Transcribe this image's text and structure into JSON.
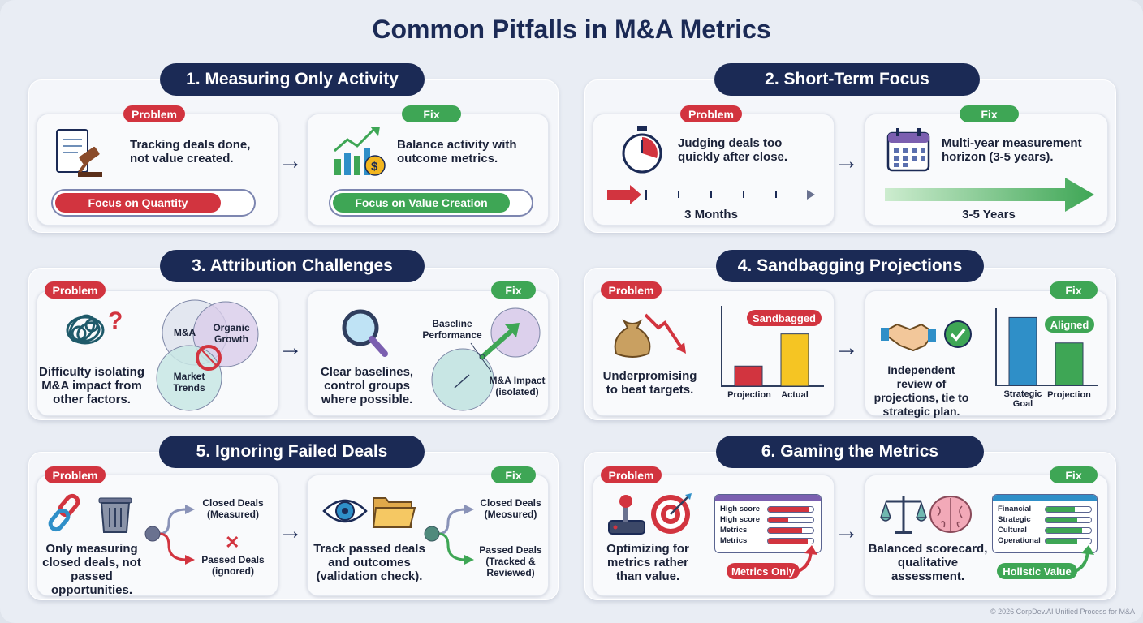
{
  "title": "Common Pitfalls in M&A Metrics",
  "labels": {
    "problem": "Problem",
    "fix": "Fix"
  },
  "colors": {
    "navy": "#1b2a55",
    "problem": "#d2343f",
    "fix": "#3ea655"
  },
  "sections": [
    {
      "title": "1. Measuring Only Activity",
      "problem": {
        "text": "Tracking deals done, not value created.",
        "bar": "Focus on Quantity",
        "icon": "document-gavel-icon"
      },
      "fix": {
        "text": "Balance activity with outcome metrics.",
        "bar": "Focus on Value Creation",
        "icon": "growth-chart-dollar-icon"
      }
    },
    {
      "title": "2. Short-Term Focus",
      "problem": {
        "text": "Judging deals too quickly after close.",
        "timeline": "3 Months",
        "icon": "stopwatch-icon"
      },
      "fix": {
        "text": "Multi-year measurement horizon (3-5 years).",
        "timeline": "3-5 Years",
        "icon": "calendar-icon"
      }
    },
    {
      "title": "3. Attribution Challenges",
      "problem": {
        "text": "Difficulty isolating M&A impact from other factors.",
        "venn": [
          "M&A",
          "Organic Growth",
          "Market Trends"
        ],
        "icon": "tangle-question-icon"
      },
      "fix": {
        "text": "Clear baselines, control groups where possible.",
        "baseline": "Baseline Performance",
        "impact": "M&A Impact (isolated)",
        "icon": "magnifier-icon"
      }
    },
    {
      "title": "4. Sandbagging Projections",
      "problem": {
        "text": "Underpromising to beat targets.",
        "tag": "Sandbagged",
        "bars": [
          {
            "label": "Projection",
            "value": 0.25
          },
          {
            "label": "Actual",
            "value": 0.65
          }
        ],
        "icon": "money-bag-down-icon"
      },
      "fix": {
        "text": "Independent review of projections, tie to strategic plan.",
        "tag": "Aligned",
        "bars": [
          {
            "label": "Strategic Goal",
            "value": 0.88
          },
          {
            "label": "Projection",
            "value": 0.55
          }
        ],
        "icon": "handshake-check-icon"
      }
    },
    {
      "title": "5. Ignoring Failed Deals",
      "problem": {
        "text": "Only measuring closed deals, not passed opportunities.",
        "branch_top": "Closed Deals (Measured)",
        "branch_bottom": "Passed Deals (ignored)",
        "icon": "broken-link-trash-icon"
      },
      "fix": {
        "text": "Track passed deals and outcomes (validation check).",
        "branch_top": "Closed Deals (Meosured)",
        "branch_bottom": "Passed Deals (Tracked & Reviewed)",
        "icon": "eye-folder-icon"
      }
    },
    {
      "title": "6. Gaming the Metrics",
      "problem": {
        "text": "Optimizing for metrics rather than value.",
        "tag": "Metrics Only",
        "rows": [
          {
            "label": "High score",
            "value": 0.9
          },
          {
            "label": "High score",
            "value": 0.45
          },
          {
            "label": "Metrics",
            "value": 0.75
          },
          {
            "label": "Metrics",
            "value": 0.88
          }
        ],
        "icon": "joystick-target-icon"
      },
      "fix": {
        "text": "Balanced scorecard, qualitative assessment.",
        "tag": "Holistic Value",
        "rows": [
          {
            "label": "Financial",
            "value": 0.65
          },
          {
            "label": "Strategic",
            "value": 0.7
          },
          {
            "label": "Cultural",
            "value": 0.8
          },
          {
            "label": "Operational",
            "value": 0.7
          }
        ],
        "icon": "scales-brain-icon"
      }
    }
  ],
  "footer": "© 2026 CorpDev.AI Unified Process for M&A"
}
